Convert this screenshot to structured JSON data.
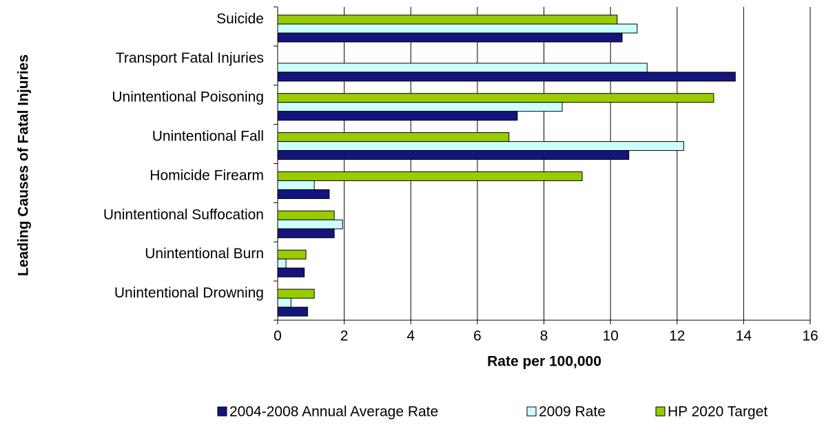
{
  "chart_data": {
    "type": "hbar",
    "y_label": "Leading Causes of Fatal Injuries",
    "x_label": "Rate per 100,000",
    "categories": [
      "Suicide",
      "Transport Fatal Injuries",
      "Unintentional Poisoning",
      "Unintentional Fall",
      "Homicide Firearm",
      "Unintentional Suffocation",
      "Unintentional Burn",
      "Unintentional Drowning"
    ],
    "series": [
      {
        "name": "2004-2008 Annual Average Rate",
        "color": "#14147d",
        "values": [
          10.35,
          13.75,
          7.2,
          10.55,
          1.55,
          1.7,
          0.8,
          0.9
        ]
      },
      {
        "name": "2009 Rate",
        "color": "#ccffff",
        "values": [
          10.8,
          11.1,
          8.55,
          12.2,
          1.1,
          1.95,
          0.25,
          0.4
        ]
      },
      {
        "name": "HP 2020 Target",
        "color": "#99cc00",
        "values": [
          10.2,
          null,
          13.1,
          6.95,
          9.15,
          1.7,
          0.85,
          1.1
        ]
      }
    ],
    "xlim": [
      0,
      16
    ],
    "xticks": [
      0,
      2,
      4,
      6,
      8,
      10,
      12,
      14,
      16
    ],
    "grid": true,
    "legend": "bottom"
  }
}
